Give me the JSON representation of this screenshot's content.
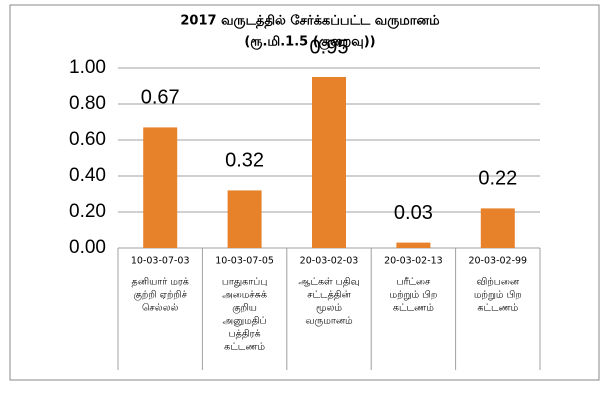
{
  "chart_data": {
    "type": "bar",
    "title": "2017 வருடத்தில் சேர்க்கப்பட்ட வருமானம்",
    "subtitle": "(ரூ.மி.1.5 (குறைவு))",
    "categories": [
      [
        "10-03-07-03",
        "தனியார் மரக்",
        "குற்றி ஏற்றிச்",
        "செல்லல்"
      ],
      [
        "10-03-07-05",
        "பாதுகாப்பு",
        "அமைச்சுக்",
        "குறிய",
        "அனுமதிப்",
        "பத்திரக்",
        "கட்டணம்"
      ],
      [
        "20-03-02-03",
        "ஆட்கள் பதிவு",
        "சட்டத்தின்",
        "மூலம்",
        "வருமானம்"
      ],
      [
        "20-03-02-13",
        "பரீட்சை",
        "மற்றும் பிற",
        "கட்டணம்"
      ],
      [
        "20-03-02-99",
        "விற்பனை",
        "மற்றும் பிற",
        "கட்டணம்"
      ]
    ],
    "values": [
      0.67,
      0.32,
      0.95,
      0.03,
      0.22
    ],
    "color": "#e8822a",
    "ylim": [
      0,
      1
    ],
    "yticks": [
      {
        "value": 0,
        "label": "0.00"
      },
      {
        "value": 0.2,
        "label": "0.20"
      },
      {
        "value": 0.4,
        "label": "0.40"
      },
      {
        "value": 0.6,
        "label": "0.60"
      },
      {
        "value": 0.8,
        "label": "0.80"
      },
      {
        "value": 1,
        "label": "1.00"
      }
    ],
    "grid": true
  }
}
